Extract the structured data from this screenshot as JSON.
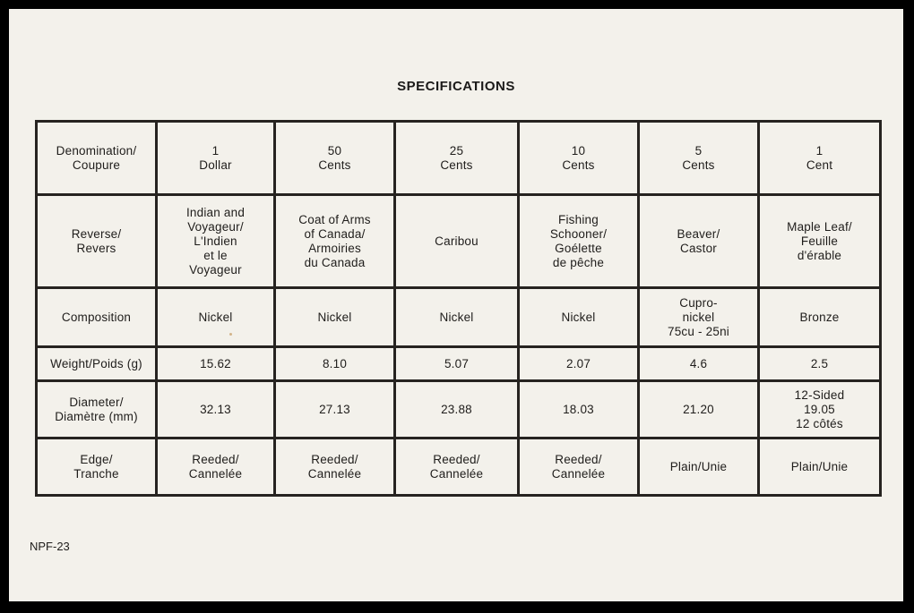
{
  "document": {
    "title": "SPECIFICATIONS",
    "code": "NPF-23"
  },
  "table": {
    "rows": [
      {
        "label": "Denomination/\nCoupure",
        "cells": [
          "1\nDollar",
          "50\nCents",
          "25\nCents",
          "10\nCents",
          "5\nCents",
          "1\nCent"
        ]
      },
      {
        "label": "Reverse/\nRevers",
        "cells": [
          "Indian and\nVoyageur/\nL'Indien\net le\nVoyageur",
          "Coat of Arms\nof Canada/\nArmoiries\ndu Canada",
          "Caribou",
          "Fishing\nSchooner/\nGoélette\nde pêche",
          "Beaver/\nCastor",
          "Maple Leaf/\nFeuille\nd'érable"
        ]
      },
      {
        "label": "Composition",
        "cells": [
          "Nickel",
          "Nickel",
          "Nickel",
          "Nickel",
          "Cupro-\nnickel\n75cu - 25ni",
          "Bronze"
        ]
      },
      {
        "label": "Weight/Poids (g)",
        "cells": [
          "15.62",
          "8.10",
          "5.07",
          "2.07",
          "4.6",
          "2.5"
        ]
      },
      {
        "label": "Diameter/\nDiamètre (mm)",
        "cells": [
          "32.13",
          "27.13",
          "23.88",
          "18.03",
          "21.20",
          "12-Sided\n19.05\n12 côtés"
        ]
      },
      {
        "label": "Edge/\nTranche",
        "cells": [
          "Reeded/\nCannelée",
          "Reeded/\nCannelée",
          "Reeded/\nCannelée",
          "Reeded/\nCannelée",
          "Plain/Unie",
          "Plain/Unie"
        ]
      }
    ]
  }
}
